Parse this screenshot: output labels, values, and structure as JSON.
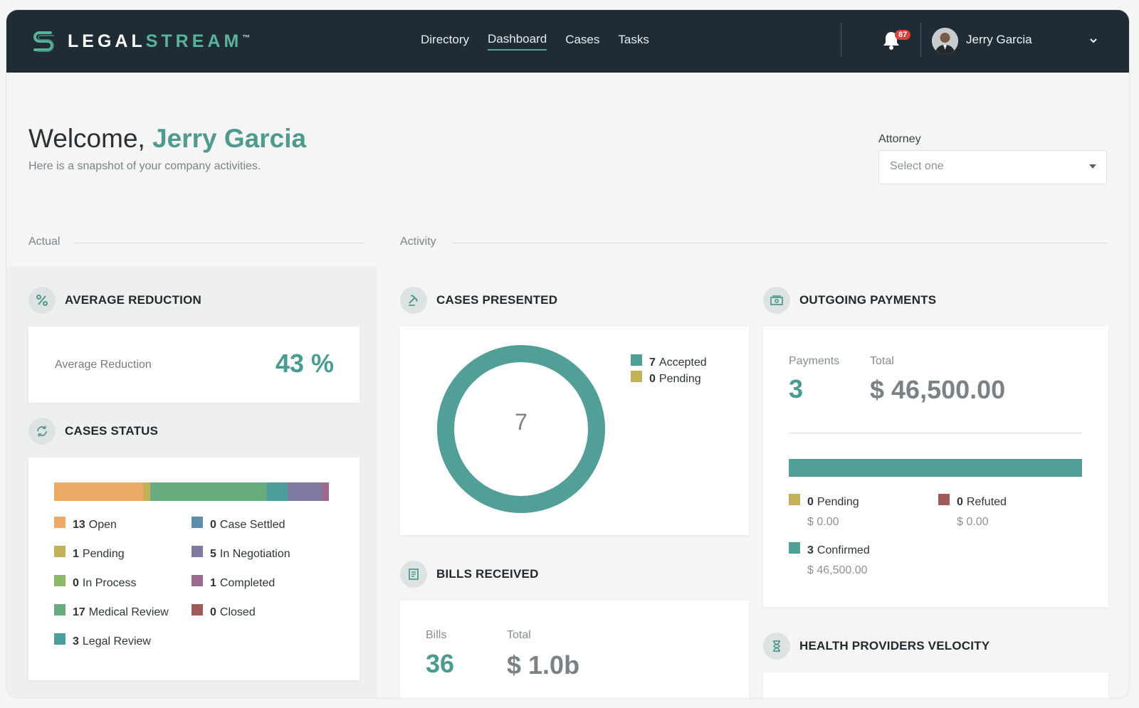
{
  "brand": {
    "name_first": "LEGAL",
    "name_second": "STREAM",
    "tm": "™"
  },
  "nav": {
    "items": [
      "Directory",
      "Dashboard",
      "Cases",
      "Tasks"
    ],
    "active": "Dashboard"
  },
  "header": {
    "notifications": "87",
    "user_name": "Jerry Garcia"
  },
  "welcome": {
    "greeting": "Welcome,",
    "name": "Jerry Garcia",
    "subtitle": "Here is a snapshot of your company activities."
  },
  "attorney": {
    "label": "Attorney",
    "placeholder": "Select one"
  },
  "sections": {
    "actual": "Actual",
    "activity": "Activity"
  },
  "average_reduction": {
    "title": "AVERAGE REDUCTION",
    "label": "Average Reduction",
    "value": "43 %"
  },
  "cases_status": {
    "title": "CASES STATUS",
    "items": [
      {
        "count": "13",
        "label": "Open",
        "value": 13,
        "color": "#eda968"
      },
      {
        "count": "1",
        "label": "Pending",
        "value": 1,
        "color": "#c3b15a"
      },
      {
        "count": "0",
        "label": "In Process",
        "value": 0,
        "color": "#8db866"
      },
      {
        "count": "17",
        "label": "Medical Review",
        "value": 17,
        "color": "#68ab7f"
      },
      {
        "count": "3",
        "label": "Legal Review",
        "value": 3,
        "color": "#4d9e9b"
      },
      {
        "count": "0",
        "label": "Case Settled",
        "value": 0,
        "color": "#5c8ea9"
      },
      {
        "count": "5",
        "label": "In Negotiation",
        "value": 5,
        "color": "#7e7aa2"
      },
      {
        "count": "1",
        "label": "Completed",
        "value": 1,
        "color": "#9e6a8c"
      },
      {
        "count": "0",
        "label": "Closed",
        "value": 0,
        "color": "#a05a5a"
      }
    ]
  },
  "cases_presented": {
    "title": "CASES PRESENTED",
    "total": "7",
    "accepted": {
      "count": "7",
      "label": "Accepted",
      "color": "#529f98"
    },
    "pending": {
      "count": "0",
      "label": "Pending",
      "color": "#c3b15a"
    }
  },
  "outgoing_payments": {
    "title": "OUTGOING PAYMENTS",
    "payments_label": "Payments",
    "payments_value": "3",
    "total_label": "Total",
    "total_value": "$ 46,500.00",
    "confirmed_fraction": 1.0,
    "pending": {
      "count": "0",
      "label": "Pending",
      "amount": "$ 0.00",
      "color": "#c3b15a"
    },
    "refuted": {
      "count": "0",
      "label": "Refuted",
      "amount": "$ 0.00",
      "color": "#a05a5a"
    },
    "confirmed": {
      "count": "3",
      "label": "Confirmed",
      "amount": "$ 46,500.00",
      "color": "#529f98"
    }
  },
  "bills_received": {
    "title": "BILLS RECEIVED",
    "bills_label": "Bills",
    "bills_value": "36",
    "total_label": "Total",
    "total_value": "$ 1.0b"
  },
  "health_providers": {
    "title": "HEALTH PROVIDERS VELOCITY"
  },
  "icons": {
    "logo": "legalstream-logo-icon",
    "bell": "bell-icon",
    "chevron": "chevron-down-icon",
    "percent": "percent-icon",
    "refresh": "refresh-icon",
    "gavel": "gavel-icon",
    "money": "money-icon",
    "bill": "bill-icon",
    "hourglass": "hourglass-icon"
  }
}
